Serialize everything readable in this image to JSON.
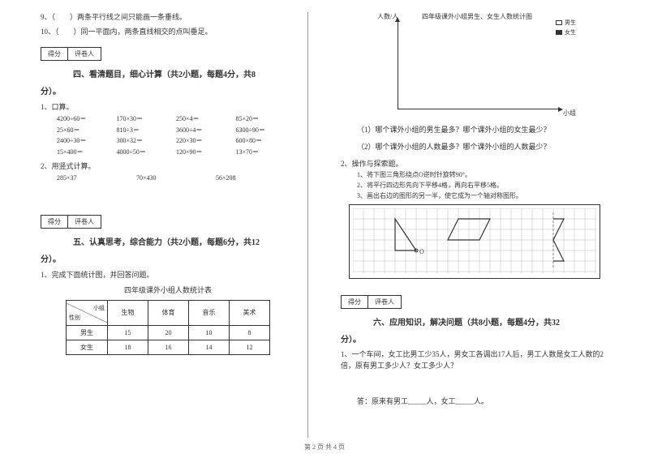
{
  "left": {
    "q9": "9、（　　）两条平行线之间只能画一条垂线。",
    "q10": "10、（　　）同一平面内，两条直线相交的点叫垂足。",
    "score_label1": "得分",
    "score_label2": "评卷人",
    "section4_title": "四、看清题目，细心计算（共2小题，每题4分，共8",
    "section4_suffix": "分）。",
    "sub1": "1、口算。",
    "calc_rows": [
      [
        "4200÷60＝",
        "170×30＝",
        "250×4＝",
        "85×20＝"
      ],
      [
        "25×60＝",
        "810÷3＝",
        "3600÷4＝",
        "6300÷90＝"
      ],
      [
        "2400÷30＝",
        "300×32＝",
        "220×30＝",
        "600×80＝"
      ],
      [
        "15×400＝",
        "4000÷50＝",
        "120×90＝",
        "13×70＝"
      ]
    ],
    "sub2": "2、用竖式计算。",
    "vcalc": [
      "285×37",
      "70×430",
      "56×208"
    ],
    "section5_title": "五、认真思考，综合能力（共2小题，每题6分，共12",
    "section5_suffix": "分）。",
    "stat_q": "1、完成下面统计图，并回答问题。",
    "table_title": "四年级课外小组人数统计表",
    "diag_top": "小组",
    "diag_bottom": "性别",
    "table_headers": [
      "生物",
      "体育",
      "音乐",
      "美术"
    ],
    "table_rows": [
      {
        "label": "男生",
        "values": [
          "15",
          "20",
          "10",
          "8"
        ]
      },
      {
        "label": "女生",
        "values": [
          "18",
          "16",
          "14",
          "12"
        ]
      }
    ]
  },
  "right": {
    "chart_title": "四年级课外小组男生、女生人数统计图",
    "y_label": "人数/人",
    "x_label": "小组",
    "legend_boy": "男生",
    "legend_girl": "女生",
    "cq1": "（1）哪个课外小组的男生最多？哪个课外小组的女生最少？",
    "cq2": "（2）哪个课外小组的人数最多？哪个课外小组的人数最少？",
    "ops_title": "2、操作与探索题。",
    "ops1": "1、将下图三角形绕点O逆时针旋转90°。",
    "ops2": "2、将平行四边形先向下平移4格，再向右平移5格。",
    "ops3": "3、画出右边的图形的另一半，使它成为一个轴对称图形。",
    "score_label1": "得分",
    "score_label2": "评卷人",
    "section6_title": "六、应用知识，解决问题（共8小题，每题4分，共32",
    "section6_suffix": "分）。",
    "app_q1": "1、一个车间，女工比男工少35人，男女工各调出17人后，男工人数是女工人数的2倍，原有男工多少人？女工多少人？",
    "answer": "答：原来有男工_____人，女工_____人。"
  },
  "footer": "第 2 页 共 4 页"
}
